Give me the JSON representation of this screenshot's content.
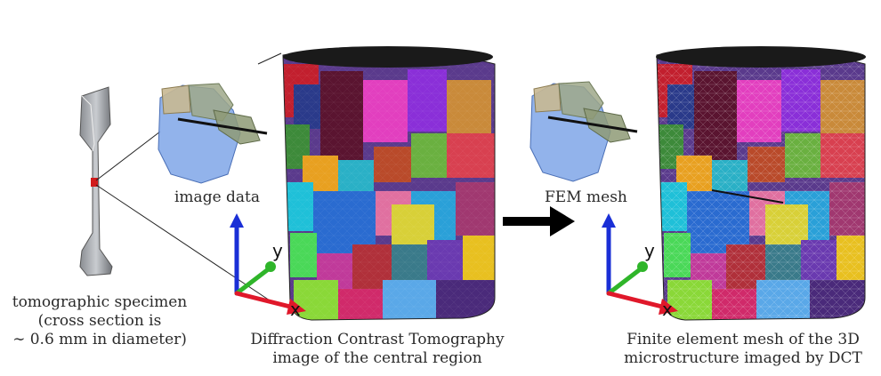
{
  "specimen": {
    "caption_lines": [
      "tomographic specimen",
      "(cross section is",
      "∼ 0.6 mm in diameter)"
    ]
  },
  "image_data": {
    "label": "image data"
  },
  "dct": {
    "caption_lines": [
      "Diffraction Contrast Tomography",
      "image of the central region"
    ],
    "axes": {
      "x": "x",
      "y": "y"
    }
  },
  "fem": {
    "label": "FEM mesh",
    "caption_lines": [
      "Finite element mesh of the 3D",
      "microstructure imaged by DCT"
    ],
    "axes": {
      "x": "x",
      "y": "y"
    }
  },
  "colors": {
    "axis_x": "#e0182a",
    "axis_y": "#2fb52a",
    "axis_z": "#1a2fd6",
    "arrow": "#000000",
    "specimen_gauge": "#d11b1b"
  }
}
